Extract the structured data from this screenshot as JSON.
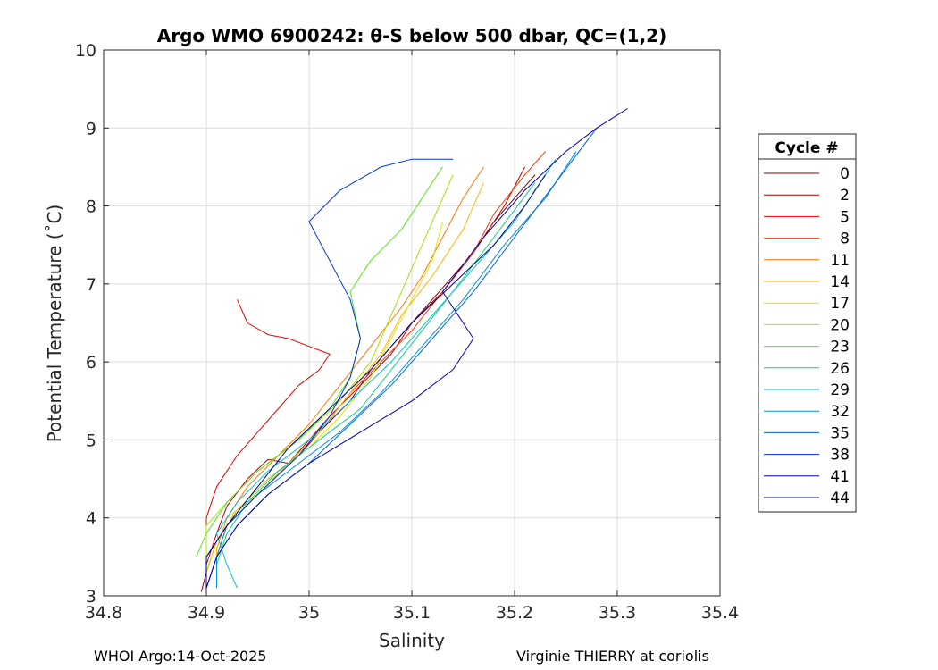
{
  "chart_data": {
    "type": "line",
    "title": "Argo WMO 6900242: θ-S below 500 dbar,  QC=(1,2)",
    "xlabel": "Salinity",
    "ylabel": "Potential Temperature (˚C)",
    "xlim": [
      34.8,
      35.4
    ],
    "ylim": [
      3,
      10
    ],
    "xticks": [
      34.8,
      34.9,
      35,
      35.1,
      35.2,
      35.3,
      35.4
    ],
    "xtick_labels": [
      "34.8",
      "34.9",
      "35",
      "35.1",
      "35.2",
      "35.3",
      "35.4"
    ],
    "yticks": [
      3,
      4,
      5,
      6,
      7,
      8,
      9,
      10
    ],
    "ytick_labels": [
      "3",
      "4",
      "5",
      "6",
      "7",
      "8",
      "9",
      "10"
    ],
    "grid": true,
    "legend": {
      "title": "Cycle #",
      "placement": "right-outside",
      "entries": [
        "0",
        "2",
        "5",
        "8",
        "11",
        "14",
        "17",
        "20",
        "23",
        "26",
        "29",
        "32",
        "35",
        "38",
        "41",
        "44"
      ],
      "colors": [
        "#800000",
        "#b40000",
        "#e60000",
        "#ff3300",
        "#ff7300",
        "#ffb300",
        "#e0e000",
        "#a8e000",
        "#5ee020",
        "#10d080",
        "#00c0d0",
        "#0090d8",
        "#0060e0",
        "#0030e0",
        "#0000b8",
        "#00008c"
      ]
    },
    "series": [
      {
        "name": "0",
        "color": "#800000",
        "x": [
          34.895,
          34.9,
          34.91,
          34.93,
          34.96,
          34.99,
          35.01,
          35.04,
          35.06,
          35.08,
          35.1,
          35.12,
          35.14,
          35.16,
          35.18,
          35.2,
          35.22
        ],
        "y": [
          3.05,
          3.3,
          3.7,
          4.1,
          4.5,
          4.8,
          5.1,
          5.5,
          5.9,
          6.2,
          6.5,
          6.8,
          7.1,
          7.4,
          7.8,
          8.1,
          8.4
        ]
      },
      {
        "name": "2",
        "color": "#b40000",
        "x": [
          34.9,
          34.9,
          34.91,
          34.92,
          34.94,
          34.96,
          34.98,
          35.0,
          35.02,
          35.05,
          35.08,
          35.1,
          35.13,
          35.16,
          35.19,
          35.21
        ],
        "y": [
          3.05,
          3.4,
          3.8,
          4.15,
          4.5,
          4.75,
          4.7,
          5.0,
          5.3,
          5.7,
          6.1,
          6.5,
          6.9,
          7.4,
          8.0,
          8.5
        ]
      },
      {
        "name": "5",
        "color": "#e60000",
        "x": [
          34.93,
          34.94,
          34.96,
          34.98,
          35.0,
          35.02,
          35.01,
          34.99,
          34.97,
          34.95,
          34.93,
          34.91,
          34.9,
          34.9
        ],
        "y": [
          6.8,
          6.5,
          6.35,
          6.3,
          6.2,
          6.1,
          5.9,
          5.7,
          5.4,
          5.1,
          4.8,
          4.4,
          4.0,
          3.1
        ]
      },
      {
        "name": "8",
        "color": "#ff3300",
        "x": [
          34.9,
          34.91,
          34.92,
          34.95,
          34.98,
          35.01,
          35.04,
          35.07,
          35.1,
          35.13,
          35.16,
          35.18,
          35.21,
          35.23
        ],
        "y": [
          3.1,
          3.5,
          3.9,
          4.3,
          4.7,
          5.1,
          5.6,
          6.0,
          6.4,
          6.9,
          7.4,
          7.9,
          8.4,
          8.7
        ]
      },
      {
        "name": "11",
        "color": "#ff7300",
        "x": [
          34.91,
          34.91,
          34.92,
          34.94,
          34.97,
          35.0,
          35.03,
          35.06,
          35.09,
          35.11,
          35.13,
          35.15,
          35.17
        ],
        "y": [
          3.1,
          3.6,
          4.0,
          4.4,
          4.8,
          5.2,
          5.7,
          6.2,
          6.7,
          7.1,
          7.6,
          8.1,
          8.5
        ]
      },
      {
        "name": "14",
        "color": "#ffb300",
        "x": [
          34.91,
          34.91,
          34.92,
          34.95,
          34.98,
          35.01,
          35.04,
          35.07,
          35.09,
          35.12,
          35.15,
          35.17
        ],
        "y": [
          3.2,
          3.6,
          4.0,
          4.3,
          4.7,
          5.1,
          5.6,
          6.1,
          6.6,
          7.1,
          7.7,
          8.3
        ]
      },
      {
        "name": "17",
        "color": "#e0e000",
        "x": [
          34.9,
          34.91,
          34.93,
          34.96,
          35.0,
          35.03,
          35.06,
          35.08,
          35.1,
          35.12,
          35.13
        ],
        "y": [
          3.3,
          3.7,
          4.1,
          4.5,
          4.9,
          5.3,
          5.8,
          6.3,
          6.8,
          7.3,
          7.8
        ]
      },
      {
        "name": "20",
        "color": "#a8e000",
        "x": [
          34.9,
          34.9,
          34.92,
          34.95,
          34.99,
          35.03,
          35.06,
          35.08,
          35.1,
          35.12,
          35.14
        ],
        "y": [
          3.5,
          3.9,
          4.2,
          4.6,
          5.0,
          5.5,
          6.0,
          6.6,
          7.2,
          7.8,
          8.4
        ]
      },
      {
        "name": "23",
        "color": "#5ee020",
        "x": [
          34.89,
          34.9,
          34.92,
          34.95,
          34.99,
          35.02,
          35.04,
          35.05,
          35.04,
          35.06,
          35.09,
          35.11,
          35.13
        ],
        "y": [
          3.5,
          3.8,
          4.2,
          4.6,
          5.0,
          5.4,
          5.8,
          6.3,
          6.9,
          7.3,
          7.7,
          8.1,
          8.5
        ]
      },
      {
        "name": "26",
        "color": "#10d080",
        "x": [
          34.91,
          34.92,
          34.94,
          34.97,
          35.01,
          35.05,
          35.08,
          35.11,
          35.14,
          35.18,
          35.22
        ],
        "y": [
          3.4,
          3.8,
          4.2,
          4.6,
          5.0,
          5.4,
          5.9,
          6.4,
          6.9,
          7.6,
          8.3
        ]
      },
      {
        "name": "29",
        "color": "#00c0d0",
        "x": [
          34.93,
          34.92,
          34.91,
          34.93,
          34.96,
          35.0,
          35.04,
          35.08,
          35.12,
          35.16,
          35.2,
          35.24
        ],
        "y": [
          3.1,
          3.4,
          3.8,
          4.2,
          4.6,
          5.0,
          5.5,
          6.0,
          6.6,
          7.2,
          7.8,
          8.6
        ]
      },
      {
        "name": "32",
        "color": "#0090d8",
        "x": [
          34.91,
          34.91,
          34.92,
          34.95,
          34.99,
          35.03,
          35.07,
          35.11,
          35.15,
          35.19,
          35.23,
          35.26
        ],
        "y": [
          3.1,
          3.5,
          3.9,
          4.3,
          4.7,
          5.1,
          5.6,
          6.2,
          6.8,
          7.5,
          8.1,
          8.7
        ]
      },
      {
        "name": "35",
        "color": "#0060e0",
        "x": [
          34.9,
          34.91,
          34.93,
          34.96,
          35.0,
          35.04,
          35.08,
          35.12,
          35.16,
          35.2,
          35.24,
          35.28
        ],
        "y": [
          3.1,
          3.5,
          3.9,
          4.3,
          4.7,
          5.2,
          5.7,
          6.3,
          6.9,
          7.6,
          8.3,
          9.0
        ]
      },
      {
        "name": "38",
        "color": "#0030e0",
        "x": [
          34.9,
          34.9,
          34.92,
          34.95,
          34.99,
          35.02,
          35.04,
          35.05,
          35.04,
          35.02,
          35.0,
          35.03,
          35.07,
          35.1,
          35.14
        ],
        "y": [
          3.1,
          3.5,
          3.9,
          4.3,
          4.8,
          5.3,
          5.8,
          6.3,
          6.8,
          7.3,
          7.8,
          8.2,
          8.5,
          8.6,
          8.6
        ]
      },
      {
        "name": "41",
        "color": "#0000b8",
        "x": [
          34.9,
          34.91,
          34.93,
          34.96,
          35.0,
          35.05,
          35.1,
          35.14,
          35.16,
          35.13,
          35.17,
          35.21,
          35.25,
          35.28,
          35.31
        ],
        "y": [
          3.1,
          3.5,
          3.9,
          4.3,
          4.7,
          5.1,
          5.5,
          5.9,
          6.3,
          6.9,
          7.6,
          8.2,
          8.7,
          9.0,
          9.25
        ]
      },
      {
        "name": "44",
        "color": "#00008c",
        "x": [
          34.9,
          34.9,
          34.92,
          34.95,
          34.98,
          35.02,
          35.06,
          35.1,
          35.14,
          35.18,
          35.21,
          35.23
        ],
        "y": [
          3.1,
          3.5,
          3.9,
          4.4,
          4.9,
          5.4,
          5.9,
          6.5,
          7.0,
          7.5,
          8.0,
          8.4
        ]
      }
    ]
  },
  "footer": {
    "left": "WHOI Argo:14-Oct-2025",
    "right": "Virginie THIERRY at coriolis"
  }
}
